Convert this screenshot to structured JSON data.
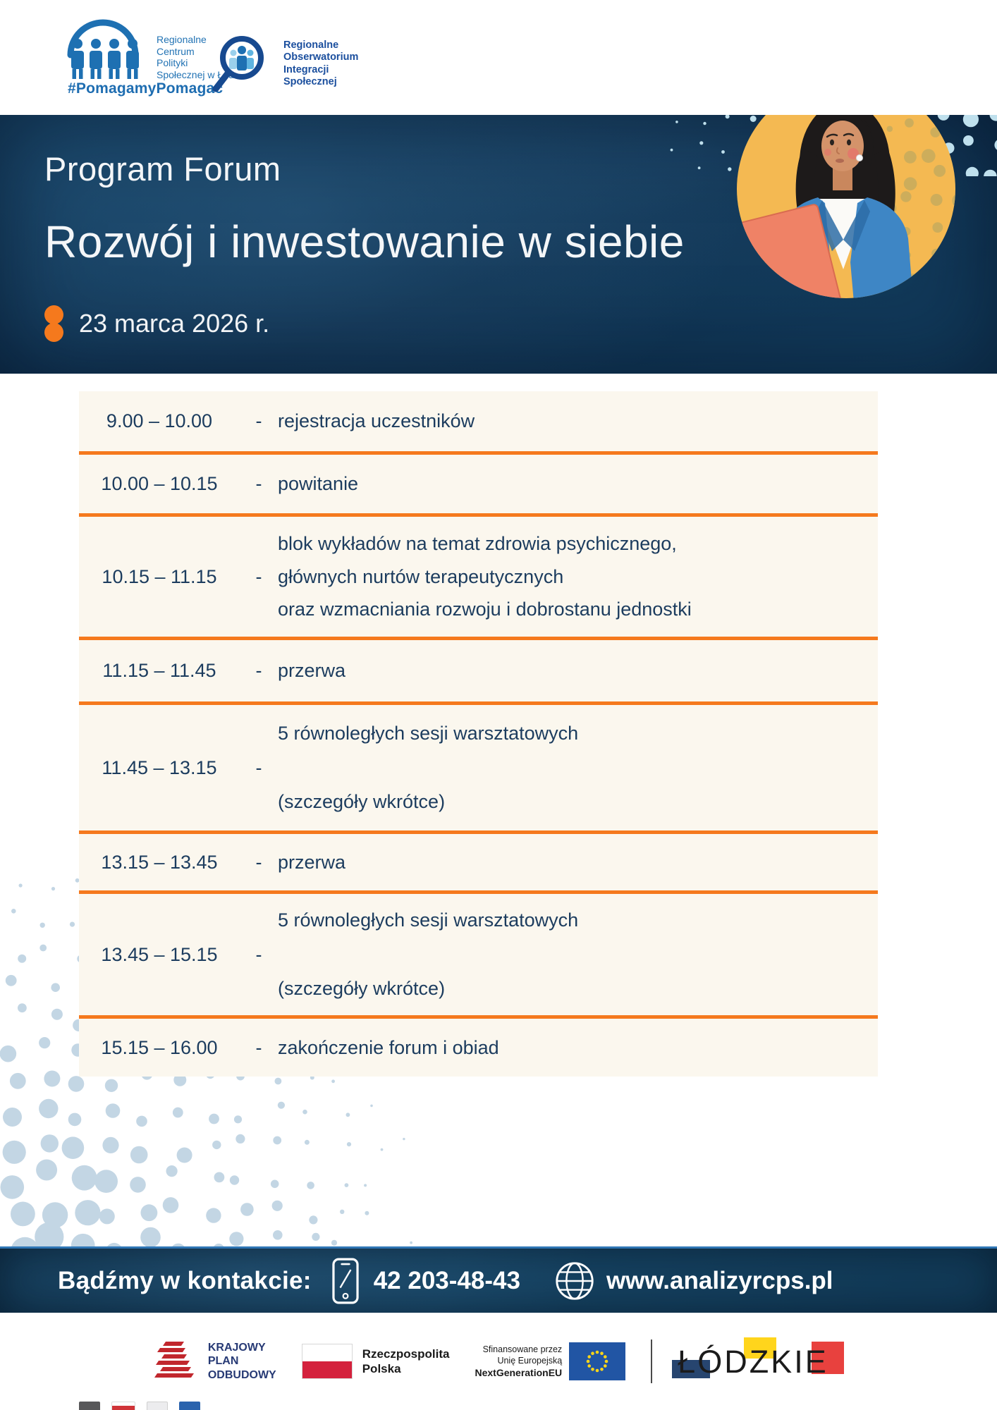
{
  "top_logos": {
    "rcps": {
      "name": "Regionalne\nCentrum\nPolityki\nSpołecznej w Łodzi",
      "hashtag": "#PomagamyPomagać"
    },
    "rois": {
      "name": "Regionalne\nObserwatorium\nIntegracji\nSpołecznej"
    }
  },
  "header": {
    "title_line1": "Program Forum",
    "title_line2": "Rozwój i inwestowanie w siebie",
    "date": "23 marca 2026 r."
  },
  "schedule": {
    "rows": [
      {
        "time": "9.00 – 10.00",
        "dash": "-",
        "description": "rejestracja uczestników"
      },
      {
        "time": "10.00 – 10.15",
        "dash": "-",
        "description": "powitanie"
      },
      {
        "time": "10.15 – 11.15",
        "dash": "-",
        "description": "blok wykładów na temat zdrowia psychicznego,\ngłównych nurtów terapeutycznych\noraz wzmacniania rozwoju i dobrostanu jednostki"
      },
      {
        "time": "11.15 – 11.45",
        "dash": "-",
        "description": "przerwa"
      },
      {
        "time": "11.45 – 13.15",
        "dash": "-",
        "description": "5 równoległych sesji warsztatowych\n\n(szczegóły wkrótce)"
      },
      {
        "time": "13.15 – 13.45",
        "dash": "-",
        "description": "przerwa"
      },
      {
        "time": "13.45 – 15.15",
        "dash": "-",
        "description": "5 równoległych sesji warsztatowych\n\n(szczegóły wkrótce)"
      },
      {
        "time": "15.15 – 16.00",
        "dash": "-",
        "description": "zakończenie forum i obiad"
      }
    ]
  },
  "contact": {
    "label": "Bądźmy w kontakcie:",
    "phone": "42 203-48-43",
    "website": "www.analizyrcps.pl"
  },
  "footer": {
    "kpo": "KRAJOWY\nPLAN\nODBUDOWY",
    "poland": "Rzeczpospolita\nPolska",
    "eu_line1": "Sfinansowane przez",
    "eu_line2": "Unię Europejską",
    "eu_line3": "NextGenerationEU",
    "lodzkie": "ŁÓDZKIE"
  },
  "colors": {
    "accent_orange": "#F5791D",
    "header_navy": "#123D5E",
    "schedule_text": "#1C3C5E",
    "schedule_cream": "#FBF7EE",
    "halftone_blue": "#C3D6E4",
    "circle_yellow": "#F4B952",
    "logo_blue": "#1E70B2"
  }
}
